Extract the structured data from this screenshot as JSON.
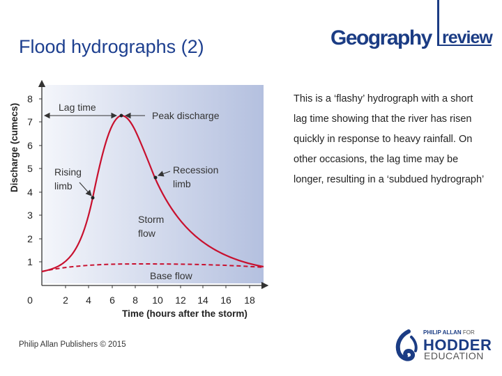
{
  "slide": {
    "title": "Flood hydrographs (2)",
    "description": "This is a ‘flashy’ hydrograph with a short lag time showing that the river has risen quickly in response to heavy rainfall. On other occasions, the lag time may be longer, resulting in a ‘subdued hydrograph’",
    "footer": "Philip Allan Publishers © 2015"
  },
  "logos": {
    "geography": "Geography",
    "review": "review",
    "publisher_top": "PHILIP ALLAN",
    "publisher_for": "FOR",
    "publisher_main": "HODDER",
    "publisher_sub": "EDUCATION"
  },
  "diagram": {
    "y_axis_label": "Discharge (cumecs)",
    "x_axis_label": "Time (hours after the storm)",
    "y_ticks": [
      "1",
      "2",
      "3",
      "4",
      "5",
      "6",
      "7",
      "8"
    ],
    "x_ticks": [
      "0",
      "2",
      "4",
      "6",
      "8",
      "10",
      "12",
      "14",
      "16",
      "18"
    ],
    "labels": {
      "lag_time": "Lag time",
      "peak_discharge": "Peak discharge",
      "rising_limb_1": "Rising",
      "rising_limb_2": "limb",
      "recession_limb_1": "Recession",
      "recession_limb_2": "limb",
      "storm_flow_1": "Storm",
      "storm_flow_2": "flow",
      "base_flow": "Base flow"
    },
    "colors": {
      "background_start": "#f4f6fb",
      "background_end": "#b7c2e0",
      "storm_curve": "#c8102e",
      "base_flow_curve": "#c8102e",
      "axes": "#333333"
    }
  }
}
